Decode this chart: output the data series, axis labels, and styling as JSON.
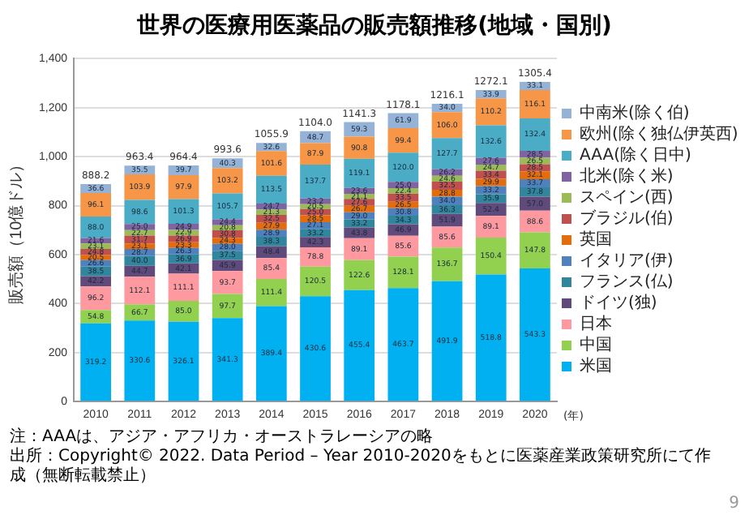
{
  "chart_data": {
    "type": "bar",
    "stacked": true,
    "title": "世界の医療用医薬品の販売額推移(地域・国別)",
    "ylabel": "販売額（10億ドル）",
    "xlabel": "(年)",
    "categories": [
      "2010",
      "2011",
      "2012",
      "2013",
      "2014",
      "2015",
      "2016",
      "2017",
      "2018",
      "2019",
      "2020"
    ],
    "series": [
      {
        "name": "米国",
        "color": "#00b0f0",
        "values": [
          319.2,
          330.6,
          326.1,
          341.3,
          389.4,
          430.6,
          455.4,
          463.7,
          491.9,
          518.8,
          543.3
        ],
        "value_labels": [
          "319.2",
          "330.6",
          "326.1",
          "341.3",
          "389.4",
          "430.6",
          "455.4",
          "463.7",
          "491.9",
          "518.8",
          "543.3"
        ]
      },
      {
        "name": "中国",
        "color": "#92d050",
        "values": [
          54.8,
          66.7,
          85.0,
          97.7,
          111.4,
          120.5,
          122.6,
          128.1,
          136.7,
          150.4,
          147.8
        ],
        "value_labels": [
          "54.8",
          "66.7",
          "85.0",
          "97.7",
          "111.4",
          "120.5",
          "122.6",
          "128.1",
          "136.7",
          "150.4",
          "147.8"
        ]
      },
      {
        "name": "日本",
        "color": "#ff99a0",
        "values": [
          96.2,
          112.1,
          111.1,
          93.7,
          85.4,
          78.8,
          89.1,
          85.6,
          85.6,
          89.1,
          88.6
        ],
        "value_labels": [
          "96.2",
          "112.1",
          "111.1",
          "93.7",
          "85.4",
          "78.8",
          "89.1",
          "85.6",
          "85.6",
          "89.1",
          "88.6"
        ]
      },
      {
        "name": "ドイツ(独)",
        "color": "#604a7b",
        "values": [
          42.2,
          44.7,
          42.1,
          45.9,
          48.4,
          42.3,
          43.8,
          46.9,
          51.9,
          52.4,
          57.0
        ],
        "value_labels": [
          "42.2",
          "44.7",
          "42.1",
          "45.9",
          "48.4",
          "42.3",
          "43.8",
          "46.9",
          "51.9",
          "52.4",
          "57.0"
        ]
      },
      {
        "name": "フランス(仏)",
        "color": "#31859c",
        "values": [
          38.5,
          40.0,
          36.9,
          37.5,
          38.3,
          33.2,
          33.2,
          34.3,
          36.3,
          35.9,
          37.8
        ],
        "value_labels": [
          "38.5",
          "40.0",
          "36.9",
          "37.5",
          "38.3",
          "33.2",
          "33.2",
          "34.3",
          "36.3",
          "35.9",
          "37.8"
        ]
      },
      {
        "name": "イタリア(伊)",
        "color": "#4f81bd",
        "values": [
          26.6,
          28.7,
          26.3,
          28.0,
          28.9,
          27.1,
          29.0,
          30.8,
          34.0,
          33.2,
          33.7
        ],
        "value_labels": [
          "26.6",
          "28.7",
          "26.3",
          "28.0",
          "28.9",
          "27.1",
          "29.0",
          "30.8",
          "34.0",
          "33.2",
          "33.7"
        ]
      },
      {
        "name": "英国",
        "color": "#e46c0a",
        "values": [
          20.5,
          23.1,
          23.3,
          24.3,
          27.9,
          28.5,
          26.7,
          26.5,
          28.8,
          29.9,
          32.1
        ],
        "value_labels": [
          "20.5",
          "23.1",
          "23.3",
          "24.3",
          "27.9",
          "28.5",
          "26.7",
          "26.5",
          "28.8",
          "29.9",
          "32.1"
        ]
      },
      {
        "name": "ブラジル(伯)",
        "color": "#c0504d",
        "values": [
          24.8,
          31.7,
          26.9,
          30.8,
          32.5,
          25.0,
          27.6,
          33.5,
          32.5,
          33.4,
          28.5
        ],
        "value_labels": [
          "24.8",
          "31.7",
          "26.9",
          "30.8",
          "32.5",
          "25.0",
          "27.6",
          "33.5",
          "32.5",
          "33.4",
          "28.5"
        ]
      },
      {
        "name": "スペイン(西)",
        "color": "#9bbb59",
        "values": [
          23.1,
          22.7,
          22.9,
          20.8,
          21.3,
          20.5,
          21.1,
          22.4,
          24.6,
          24.7,
          26.5
        ],
        "value_labels": [
          "23.1",
          "22.7",
          "22.9",
          "20.8",
          "21.3",
          "20.5",
          "21.1",
          "22.4",
          "24.6",
          "24.7",
          "26.5"
        ]
      },
      {
        "name": "北米(除く米)",
        "color": "#8064a2",
        "values": [
          21.6,
          25.0,
          24.9,
          24.4,
          24.7,
          23.2,
          23.6,
          25.0,
          26.2,
          27.6,
          28.5
        ],
        "value_labels": [
          "21.6",
          "25.0",
          "24.9",
          "24.4",
          "24.7",
          "23.2",
          "23.6",
          "25.0",
          "26.2",
          "27.6",
          "28.5"
        ]
      },
      {
        "name": "AAA(除く日中)",
        "color": "#4bacc6",
        "values": [
          88.0,
          98.6,
          101.3,
          105.7,
          113.5,
          137.7,
          119.1,
          120.0,
          127.7,
          132.6,
          132.4
        ],
        "value_labels": [
          "88.0",
          "98.6",
          "101.3",
          "105.7",
          "113.5",
          "137.7",
          "119.1",
          "120.0",
          "127.7",
          "132.6",
          "132.4"
        ]
      },
      {
        "name": "欧州(除く独仏伊英西)",
        "color": "#f79646",
        "values": [
          96.1,
          103.9,
          97.9,
          103.2,
          101.6,
          87.9,
          90.8,
          99.4,
          106.0,
          110.2,
          116.1
        ],
        "value_labels": [
          "96.1",
          "103.9",
          "97.9",
          "103.2",
          "101.6",
          "87.9",
          "90.8",
          "99.4",
          "106.0",
          "110.2",
          "116.1"
        ]
      },
      {
        "name": "中南米(除く伯)",
        "color": "#95b3d7",
        "values": [
          36.6,
          35.5,
          39.7,
          40.3,
          32.6,
          48.7,
          59.3,
          61.9,
          34.0,
          33.9,
          33.1
        ],
        "value_labels": [
          "36.6",
          "35.5",
          "39.7",
          "40.3",
          "32.6",
          "48.7",
          "59.3",
          "61.9",
          "34.0",
          "33.9",
          "33.1"
        ]
      }
    ],
    "totals": [
      "888.2",
      "963.4",
      "964.4",
      "993.6",
      "1055.9",
      "1104.0",
      "1141.3",
      "1178.1",
      "1216.1",
      "1272.1",
      "1305.4"
    ],
    "ylim": [
      0,
      1400
    ],
    "yticks": [
      {
        "value": 0,
        "label": "0"
      },
      {
        "value": 200,
        "label": "200"
      },
      {
        "value": 400,
        "label": "400"
      },
      {
        "value": 600,
        "label": "600"
      },
      {
        "value": 800,
        "label": "800"
      },
      {
        "value": 1000,
        "label": "1,000"
      },
      {
        "value": 1200,
        "label": "1,200"
      },
      {
        "value": 1400,
        "label": "1,400"
      }
    ],
    "grid": "y",
    "legend": "right",
    "annotations": [
      "注：AAAは、アジア・アフリカ・オーストラレーシアの略",
      "出所：Copyright© 2022. Data Period – Year 2010-2020をもとに医薬産業政策研究所にて作成（無断転載禁止）",
      "9"
    ]
  }
}
